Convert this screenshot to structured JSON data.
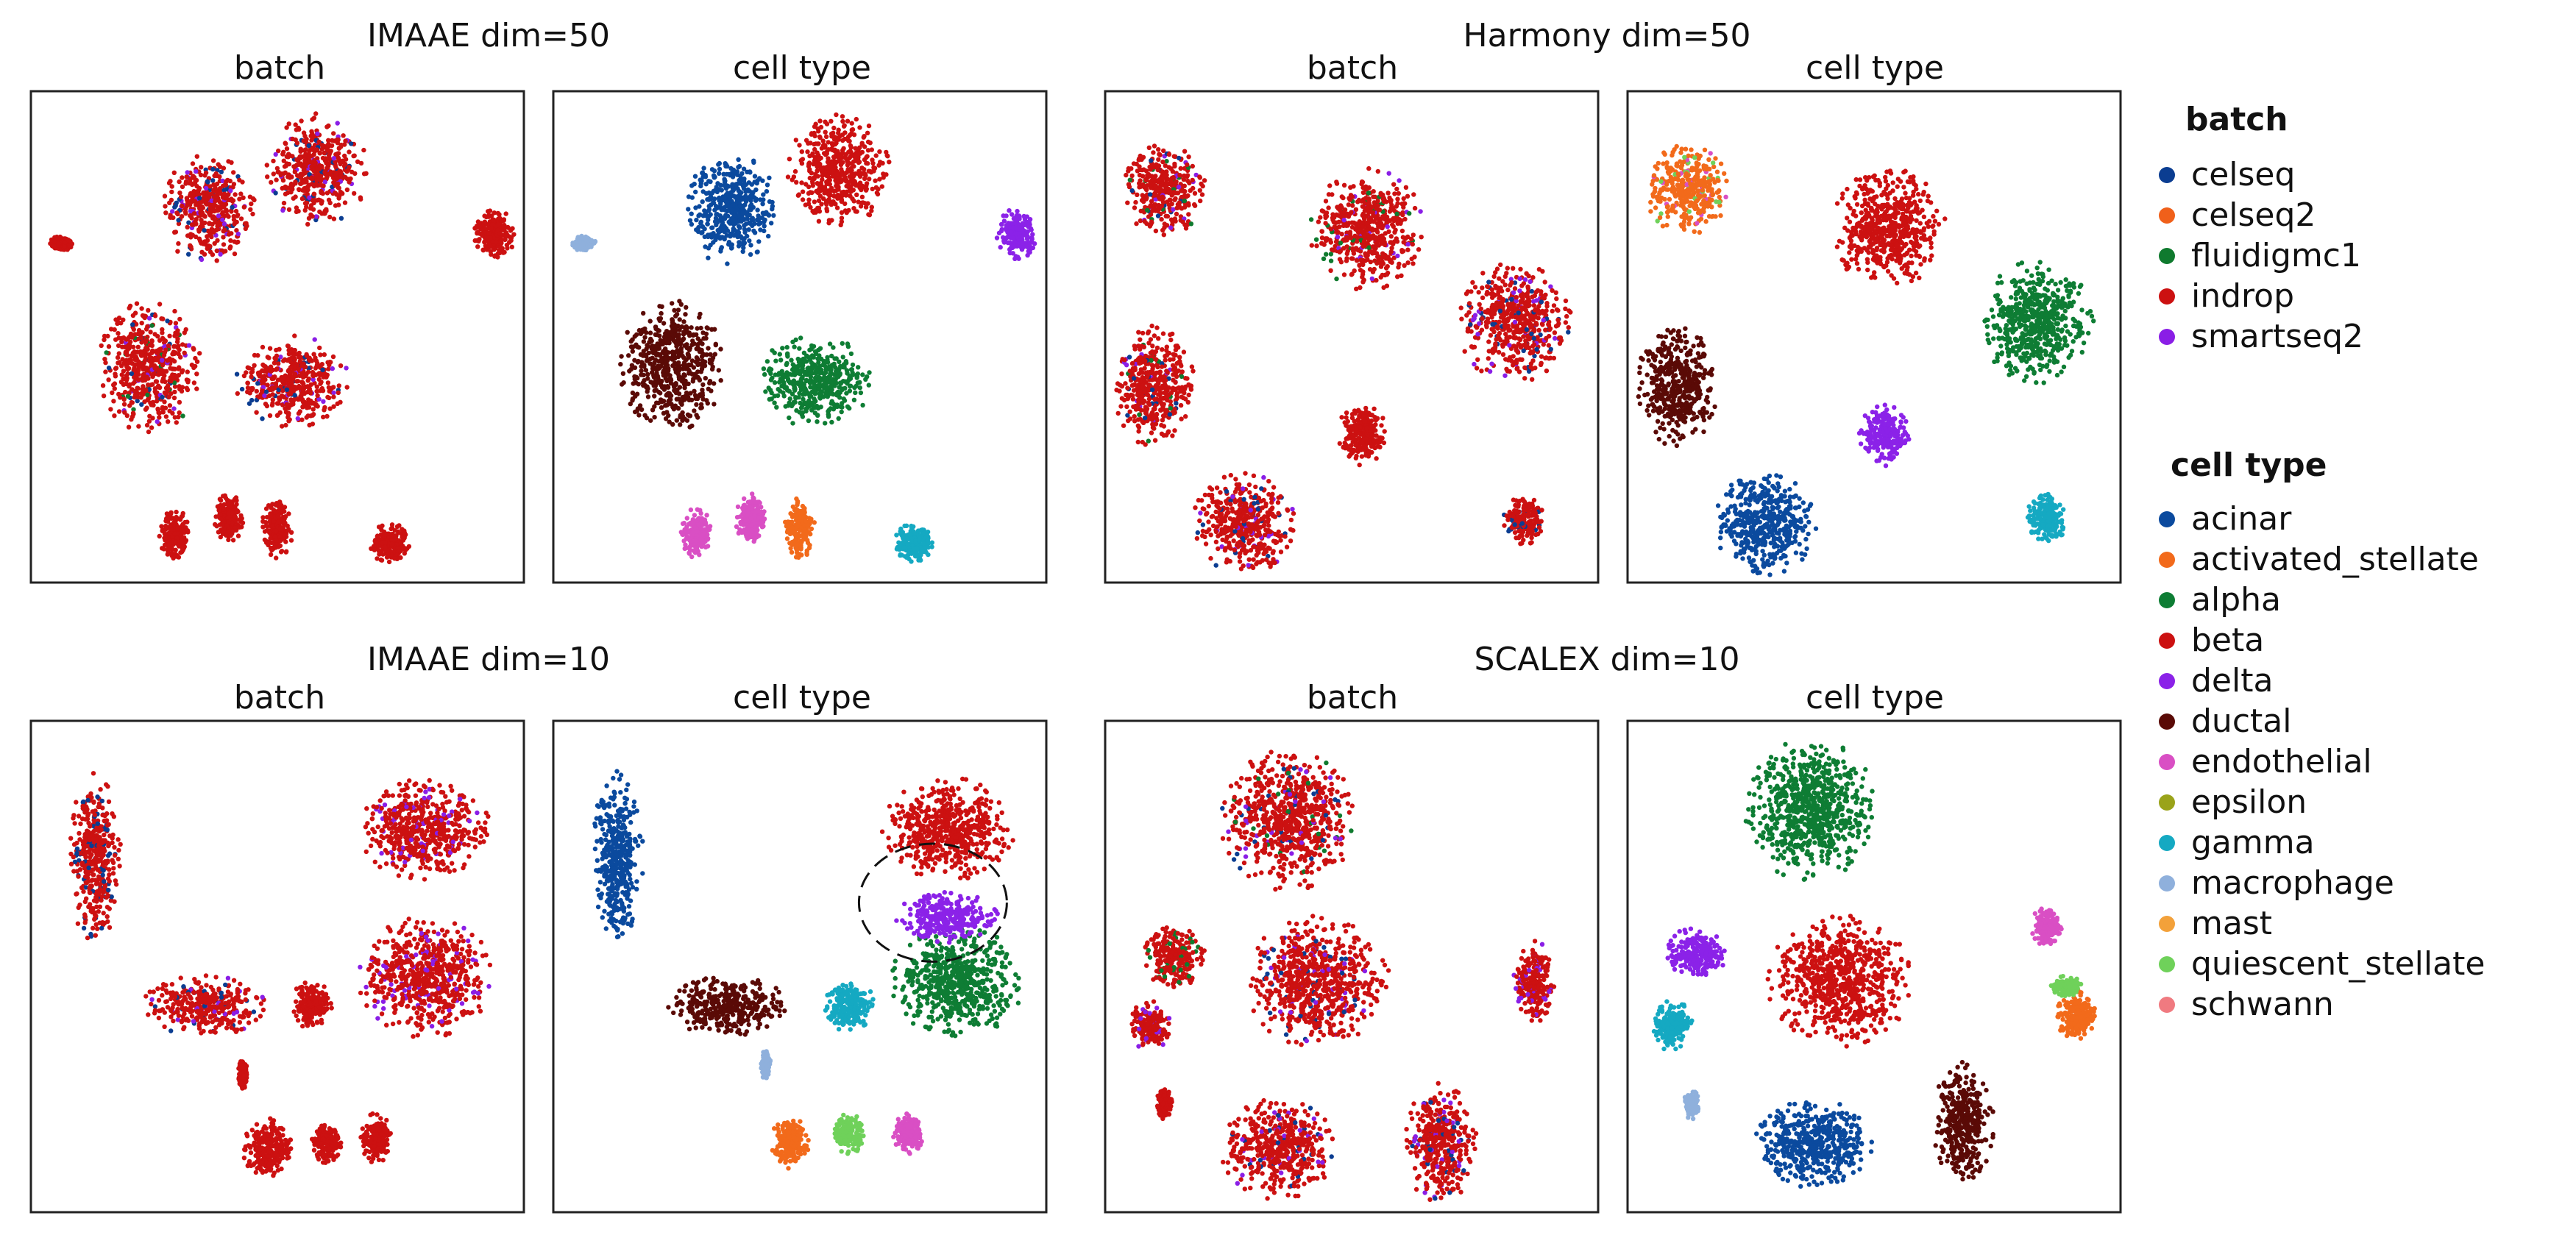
{
  "chart_data": {
    "type": "scatter",
    "colors": {
      "celseq": "#0b3d91",
      "celseq2": "#f0601a",
      "fluidigmc1": "#0f7a2e",
      "indrop": "#cc1111",
      "smartseq2": "#8a1ee6",
      "acinar": "#0b4a9e",
      "activated_stellate": "#f26a1b",
      "alpha": "#0e7d34",
      "beta": "#cc1111",
      "delta": "#8b22e8",
      "ductal": "#5a0a06",
      "endothelial": "#d94fc4",
      "epsilon": "#9aa31a",
      "gamma": "#15a9c2",
      "macrophage": "#8fb0dc",
      "mast": "#f3a13a",
      "quiescent_stellate": "#6fd15a",
      "schwann": "#f07a80"
    },
    "groups": [
      {
        "title": "IMAAE dim=50",
        "panels": [
          {
            "title": "batch",
            "clusters": [
              {
                "x": 0.58,
                "y": 0.84,
                "rx": 0.1,
                "ry": 0.11,
                "label": "indrop",
                "mix": [
                  "celseq",
                  "smartseq2"
                ]
              },
              {
                "x": 0.36,
                "y": 0.76,
                "rx": 0.09,
                "ry": 0.11,
                "label": "indrop",
                "mix": [
                  "celseq",
                  "smartseq2"
                ]
              },
              {
                "x": 0.94,
                "y": 0.71,
                "rx": 0.04,
                "ry": 0.05,
                "label": "indrop",
                "mix": []
              },
              {
                "x": 0.06,
                "y": 0.69,
                "rx": 0.025,
                "ry": 0.015,
                "label": "indrop",
                "mix": []
              },
              {
                "x": 0.24,
                "y": 0.44,
                "rx": 0.1,
                "ry": 0.13,
                "label": "indrop",
                "mix": [
                  "celseq",
                  "smartseq2",
                  "fluidigmc1"
                ]
              },
              {
                "x": 0.53,
                "y": 0.41,
                "rx": 0.11,
                "ry": 0.09,
                "label": "indrop",
                "mix": [
                  "celseq",
                  "smartseq2"
                ]
              },
              {
                "x": 0.4,
                "y": 0.13,
                "rx": 0.03,
                "ry": 0.05,
                "label": "indrop",
                "mix": []
              },
              {
                "x": 0.29,
                "y": 0.1,
                "rx": 0.03,
                "ry": 0.05,
                "label": "indrop",
                "mix": []
              },
              {
                "x": 0.5,
                "y": 0.11,
                "rx": 0.03,
                "ry": 0.06,
                "label": "indrop",
                "mix": []
              },
              {
                "x": 0.73,
                "y": 0.08,
                "rx": 0.04,
                "ry": 0.04,
                "label": "indrop",
                "mix": []
              }
            ]
          },
          {
            "title": "cell type",
            "clusters": [
              {
                "x": 0.58,
                "y": 0.84,
                "rx": 0.1,
                "ry": 0.11,
                "label": "beta",
                "mix": []
              },
              {
                "x": 0.36,
                "y": 0.76,
                "rx": 0.09,
                "ry": 0.11,
                "label": "acinar",
                "mix": []
              },
              {
                "x": 0.94,
                "y": 0.71,
                "rx": 0.04,
                "ry": 0.05,
                "label": "delta",
                "mix": []
              },
              {
                "x": 0.06,
                "y": 0.69,
                "rx": 0.025,
                "ry": 0.015,
                "label": "macrophage",
                "mix": []
              },
              {
                "x": 0.24,
                "y": 0.44,
                "rx": 0.1,
                "ry": 0.13,
                "label": "ductal",
                "mix": []
              },
              {
                "x": 0.53,
                "y": 0.41,
                "rx": 0.11,
                "ry": 0.09,
                "label": "alpha",
                "mix": []
              },
              {
                "x": 0.4,
                "y": 0.13,
                "rx": 0.03,
                "ry": 0.05,
                "label": "endothelial",
                "mix": []
              },
              {
                "x": 0.29,
                "y": 0.1,
                "rx": 0.03,
                "ry": 0.05,
                "label": "endothelial",
                "mix": []
              },
              {
                "x": 0.5,
                "y": 0.11,
                "rx": 0.03,
                "ry": 0.06,
                "label": "activated_stellate",
                "mix": []
              },
              {
                "x": 0.73,
                "y": 0.08,
                "rx": 0.04,
                "ry": 0.04,
                "label": "gamma",
                "mix": []
              }
            ]
          }
        ]
      },
      {
        "title": "Harmony dim=50",
        "panels": [
          {
            "title": "batch",
            "clusters": [
              {
                "x": 0.12,
                "y": 0.8,
                "rx": 0.08,
                "ry": 0.09,
                "label": "indrop",
                "mix": [
                  "celseq",
                  "smartseq2",
                  "fluidigmc1"
                ]
              },
              {
                "x": 0.53,
                "y": 0.72,
                "rx": 0.11,
                "ry": 0.12,
                "label": "indrop",
                "mix": [
                  "fluidigmc1",
                  "smartseq2"
                ]
              },
              {
                "x": 0.83,
                "y": 0.53,
                "rx": 0.11,
                "ry": 0.12,
                "label": "indrop",
                "mix": [
                  "smartseq2",
                  "celseq"
                ]
              },
              {
                "x": 0.1,
                "y": 0.4,
                "rx": 0.08,
                "ry": 0.12,
                "label": "indrop",
                "mix": [
                  "celseq",
                  "smartseq2",
                  "fluidigmc1"
                ]
              },
              {
                "x": 0.52,
                "y": 0.3,
                "rx": 0.05,
                "ry": 0.06,
                "label": "indrop",
                "mix": []
              },
              {
                "x": 0.28,
                "y": 0.12,
                "rx": 0.1,
                "ry": 0.1,
                "label": "indrop",
                "mix": [
                  "celseq",
                  "smartseq2"
                ]
              },
              {
                "x": 0.85,
                "y": 0.13,
                "rx": 0.04,
                "ry": 0.05,
                "label": "indrop",
                "mix": [
                  "celseq"
                ]
              }
            ]
          },
          {
            "title": "cell type",
            "clusters": [
              {
                "x": 0.12,
                "y": 0.8,
                "rx": 0.08,
                "ry": 0.09,
                "label": "activated_stellate",
                "mix": [
                  "quiescent_stellate",
                  "endothelial"
                ]
              },
              {
                "x": 0.53,
                "y": 0.72,
                "rx": 0.11,
                "ry": 0.12,
                "label": "beta",
                "mix": []
              },
              {
                "x": 0.83,
                "y": 0.53,
                "rx": 0.11,
                "ry": 0.12,
                "label": "alpha",
                "mix": []
              },
              {
                "x": 0.1,
                "y": 0.4,
                "rx": 0.08,
                "ry": 0.12,
                "label": "ductal",
                "mix": []
              },
              {
                "x": 0.52,
                "y": 0.3,
                "rx": 0.05,
                "ry": 0.06,
                "label": "delta",
                "mix": []
              },
              {
                "x": 0.28,
                "y": 0.12,
                "rx": 0.1,
                "ry": 0.1,
                "label": "acinar",
                "mix": []
              },
              {
                "x": 0.85,
                "y": 0.13,
                "rx": 0.04,
                "ry": 0.05,
                "label": "gamma",
                "mix": []
              }
            ]
          }
        ]
      },
      {
        "title": "IMAAE dim=10",
        "panels": [
          {
            "title": "batch",
            "clusters": [
              {
                "x": 0.13,
                "y": 0.72,
                "rx": 0.05,
                "ry": 0.17,
                "label": "indrop",
                "mix": [
                  "celseq"
                ]
              },
              {
                "x": 0.8,
                "y": 0.78,
                "rx": 0.13,
                "ry": 0.1,
                "label": "indrop",
                "mix": [
                  "smartseq2"
                ]
              },
              {
                "x": 0.35,
                "y": 0.42,
                "rx": 0.12,
                "ry": 0.06,
                "label": "indrop",
                "mix": [
                  "celseq",
                  "smartseq2"
                ]
              },
              {
                "x": 0.8,
                "y": 0.48,
                "rx": 0.13,
                "ry": 0.12,
                "label": "indrop",
                "mix": [
                  "smartseq2"
                ]
              },
              {
                "x": 0.57,
                "y": 0.42,
                "rx": 0.04,
                "ry": 0.05,
                "label": "indrop",
                "mix": []
              },
              {
                "x": 0.48,
                "y": 0.13,
                "rx": 0.05,
                "ry": 0.06,
                "label": "indrop",
                "mix": []
              },
              {
                "x": 0.7,
                "y": 0.15,
                "rx": 0.03,
                "ry": 0.05,
                "label": "indrop",
                "mix": []
              },
              {
                "x": 0.6,
                "y": 0.14,
                "rx": 0.03,
                "ry": 0.04,
                "label": "indrop",
                "mix": []
              },
              {
                "x": 0.43,
                "y": 0.28,
                "rx": 0.01,
                "ry": 0.03,
                "label": "indrop",
                "mix": []
              }
            ]
          },
          {
            "title": "cell type",
            "clusters": [
              {
                "x": 0.13,
                "y": 0.72,
                "rx": 0.05,
                "ry": 0.17,
                "label": "acinar",
                "mix": []
              },
              {
                "x": 0.8,
                "y": 0.78,
                "rx": 0.13,
                "ry": 0.1,
                "label": "beta",
                "mix": []
              },
              {
                "x": 0.35,
                "y": 0.42,
                "rx": 0.12,
                "ry": 0.06,
                "label": "ductal",
                "mix": []
              },
              {
                "x": 0.82,
                "y": 0.47,
                "rx": 0.13,
                "ry": 0.11,
                "label": "alpha",
                "mix": []
              },
              {
                "x": 0.8,
                "y": 0.6,
                "rx": 0.1,
                "ry": 0.05,
                "label": "delta",
                "mix": []
              },
              {
                "x": 0.6,
                "y": 0.42,
                "rx": 0.05,
                "ry": 0.05,
                "label": "gamma",
                "mix": []
              },
              {
                "x": 0.48,
                "y": 0.14,
                "rx": 0.04,
                "ry": 0.05,
                "label": "activated_stellate",
                "mix": []
              },
              {
                "x": 0.6,
                "y": 0.16,
                "rx": 0.03,
                "ry": 0.04,
                "label": "quiescent_stellate",
                "mix": []
              },
              {
                "x": 0.72,
                "y": 0.16,
                "rx": 0.03,
                "ry": 0.04,
                "label": "endothelial",
                "mix": []
              },
              {
                "x": 0.43,
                "y": 0.3,
                "rx": 0.01,
                "ry": 0.03,
                "label": "macrophage",
                "mix": []
              }
            ]
          }
        ]
      },
      {
        "title": "SCALEX dim=10",
        "panels": [
          {
            "title": "batch",
            "clusters": [
              {
                "x": 0.37,
                "y": 0.8,
                "rx": 0.13,
                "ry": 0.14,
                "label": "indrop",
                "mix": [
                  "smartseq2",
                  "celseq",
                  "fluidigmc1"
                ]
              },
              {
                "x": 0.43,
                "y": 0.47,
                "rx": 0.14,
                "ry": 0.13,
                "label": "indrop",
                "mix": [
                  "celseq",
                  "smartseq2"
                ]
              },
              {
                "x": 0.14,
                "y": 0.52,
                "rx": 0.06,
                "ry": 0.06,
                "label": "indrop",
                "mix": [
                  "fluidigmc1"
                ]
              },
              {
                "x": 0.09,
                "y": 0.38,
                "rx": 0.04,
                "ry": 0.05,
                "label": "indrop",
                "mix": [
                  "smartseq2"
                ]
              },
              {
                "x": 0.87,
                "y": 0.47,
                "rx": 0.04,
                "ry": 0.08,
                "label": "indrop",
                "mix": [
                  "smartseq2"
                ]
              },
              {
                "x": 0.35,
                "y": 0.13,
                "rx": 0.11,
                "ry": 0.1,
                "label": "indrop",
                "mix": [
                  "smartseq2",
                  "celseq"
                ]
              },
              {
                "x": 0.68,
                "y": 0.14,
                "rx": 0.07,
                "ry": 0.12,
                "label": "indrop",
                "mix": [
                  "smartseq2",
                  "celseq"
                ]
              },
              {
                "x": 0.12,
                "y": 0.22,
                "rx": 0.015,
                "ry": 0.03,
                "label": "indrop",
                "mix": []
              }
            ]
          },
          {
            "title": "cell type",
            "clusters": [
              {
                "x": 0.37,
                "y": 0.82,
                "rx": 0.13,
                "ry": 0.14,
                "label": "alpha",
                "mix": []
              },
              {
                "x": 0.43,
                "y": 0.47,
                "rx": 0.14,
                "ry": 0.13,
                "label": "beta",
                "mix": []
              },
              {
                "x": 0.14,
                "y": 0.53,
                "rx": 0.06,
                "ry": 0.05,
                "label": "delta",
                "mix": []
              },
              {
                "x": 0.09,
                "y": 0.38,
                "rx": 0.04,
                "ry": 0.05,
                "label": "gamma",
                "mix": []
              },
              {
                "x": 0.85,
                "y": 0.58,
                "rx": 0.03,
                "ry": 0.04,
                "label": "endothelial",
                "mix": []
              },
              {
                "x": 0.91,
                "y": 0.4,
                "rx": 0.04,
                "ry": 0.05,
                "label": "activated_stellate",
                "mix": []
              },
              {
                "x": 0.89,
                "y": 0.46,
                "rx": 0.03,
                "ry": 0.02,
                "label": "quiescent_stellate",
                "mix": []
              },
              {
                "x": 0.38,
                "y": 0.14,
                "rx": 0.12,
                "ry": 0.09,
                "label": "acinar",
                "mix": []
              },
              {
                "x": 0.68,
                "y": 0.18,
                "rx": 0.06,
                "ry": 0.12,
                "label": "ductal",
                "mix": []
              },
              {
                "x": 0.13,
                "y": 0.22,
                "rx": 0.015,
                "ry": 0.03,
                "label": "macrophage",
                "mix": []
              }
            ]
          }
        ]
      }
    ],
    "legend": {
      "batch_title": "batch",
      "batch_entries": [
        "celseq",
        "celseq2",
        "fluidigmc1",
        "indrop",
        "smartseq2"
      ],
      "celltype_title": "cell type",
      "celltype_entries": [
        "acinar",
        "activated_stellate",
        "alpha",
        "beta",
        "delta",
        "ductal",
        "endothelial",
        "epsilon",
        "gamma",
        "macrophage",
        "mast",
        "quiescent_stellate",
        "schwann"
      ]
    },
    "annotation": {
      "shape": "dashed-ellipse",
      "group": 2,
      "panel": 1,
      "x": 0.77,
      "y": 0.63,
      "rx": 0.15,
      "ry": 0.12
    }
  }
}
